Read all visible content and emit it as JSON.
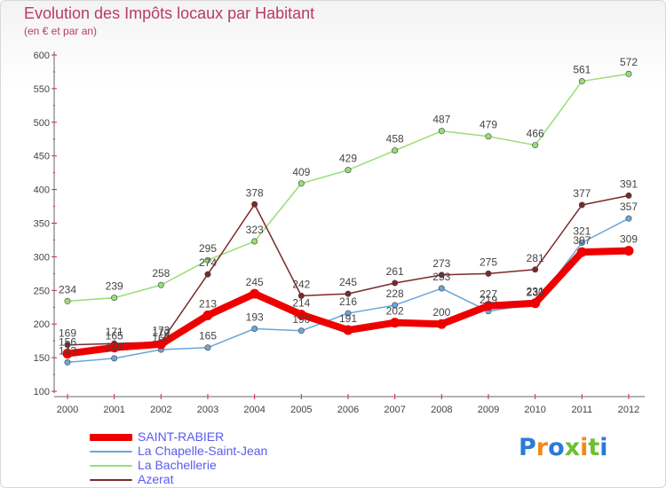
{
  "header": {
    "title": "Evolution des Impôts locaux par Habitant",
    "subtitle": "(en € et par an)"
  },
  "brand": {
    "logo_text": "Proxiti",
    "colors": [
      "#2a7ad8",
      "#f08a1c",
      "#2a7ad8",
      "#6cc030",
      "#f08a1c",
      "#6cc030",
      "#2a7ad8"
    ]
  },
  "chart_data": {
    "type": "line",
    "title": "Evolution des Impôts locaux par Habitant",
    "subtitle": "(en € et par an)",
    "xlabel": "",
    "ylabel": "",
    "x": [
      "2000",
      "2001",
      "2002",
      "2003",
      "2004",
      "2005",
      "2006",
      "2007",
      "2008",
      "2009",
      "2010",
      "2011",
      "2012"
    ],
    "ylim": [
      100,
      600
    ],
    "yticks": [
      100,
      150,
      200,
      250,
      300,
      350,
      400,
      450,
      500,
      550,
      600
    ],
    "grid": false,
    "legend_position": "bottom-left",
    "series": [
      {
        "name": "SAINT-RABIER",
        "color": "#ee0000",
        "values": [
          156,
          165,
          170,
          213,
          245,
          214,
          191,
          202,
          200,
          227,
          231,
          307,
          309
        ],
        "labels": [
          "156",
          "165",
          "170",
          "213",
          "245",
          "214",
          "191",
          "202",
          "200",
          "227",
          "231",
          "307",
          "309"
        ],
        "emphasis": true
      },
      {
        "name": "La Chapelle-Saint-Jean",
        "color": "#6aa6d8",
        "values": [
          143,
          149,
          162,
          165,
          193,
          190,
          216,
          228,
          253,
          219,
          230,
          321,
          357
        ],
        "labels": [
          "143",
          "149",
          "162",
          "165",
          "193",
          "190",
          "216",
          "228",
          "253",
          "219",
          "230",
          "321",
          "357"
        ],
        "emphasis": false
      },
      {
        "name": "La Bachellerie",
        "color": "#99dd77",
        "values": [
          234,
          239,
          258,
          295,
          323,
          409,
          429,
          458,
          487,
          479,
          466,
          561,
          572
        ],
        "labels": [
          "234",
          "239",
          "258",
          "295",
          "323",
          "409",
          "429",
          "458",
          "487",
          "479",
          "466",
          "561",
          "572"
        ],
        "emphasis": false
      },
      {
        "name": "Azerat",
        "color": "#7a2a2a",
        "values": [
          169,
          171,
          173,
          274,
          378,
          242,
          245,
          261,
          273,
          275,
          281,
          377,
          391
        ],
        "labels": [
          "169",
          "171",
          "173",
          "274",
          "378",
          "242",
          "245",
          "261",
          "273",
          "275",
          "281",
          "377",
          "391"
        ],
        "emphasis": false
      }
    ]
  }
}
